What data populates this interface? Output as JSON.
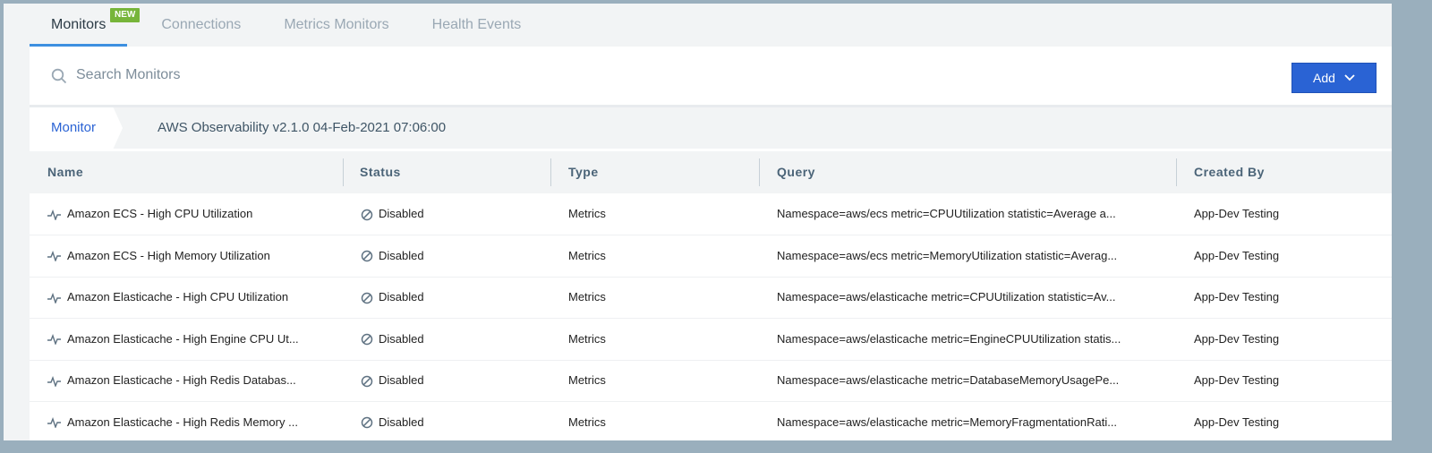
{
  "tabs": [
    {
      "label": "Monitors",
      "active": true,
      "badge": "NEW"
    },
    {
      "label": "Connections"
    },
    {
      "label": "Metrics Monitors"
    },
    {
      "label": "Health Events"
    }
  ],
  "search": {
    "placeholder": "Search Monitors",
    "icon": "search-icon"
  },
  "add_button": {
    "label": "Add",
    "icon": "chevron-down-icon",
    "color": "#2a63d4"
  },
  "breadcrumb": {
    "root": "Monitor",
    "current": "AWS Observability v2.1.0 04-Feb-2021 07:06:00"
  },
  "table": {
    "columns": [
      "Name",
      "Status",
      "Type",
      "Query",
      "Created By"
    ],
    "rows": [
      {
        "name": "Amazon ECS - High CPU Utilization",
        "status": "Disabled",
        "type": "Metrics",
        "query": "Namespace=aws/ecs metric=CPUUtilization statistic=Average a...",
        "created_by": "App-Dev Testing"
      },
      {
        "name": "Amazon ECS - High Memory Utilization",
        "status": "Disabled",
        "type": "Metrics",
        "query": "Namespace=aws/ecs metric=MemoryUtilization statistic=Averag...",
        "created_by": "App-Dev Testing"
      },
      {
        "name": "Amazon Elasticache - High CPU Utilization",
        "status": "Disabled",
        "type": "Metrics",
        "query": "Namespace=aws/elasticache metric=CPUUtilization statistic=Av...",
        "created_by": "App-Dev Testing"
      },
      {
        "name": "Amazon Elasticache - High Engine CPU Ut...",
        "status": "Disabled",
        "type": "Metrics",
        "query": "Namespace=aws/elasticache metric=EngineCPUUtilization statis...",
        "created_by": "App-Dev Testing"
      },
      {
        "name": "Amazon Elasticache - High Redis Databas...",
        "status": "Disabled",
        "type": "Metrics",
        "query": "Namespace=aws/elasticache metric=DatabaseMemoryUsagePe...",
        "created_by": "App-Dev Testing"
      },
      {
        "name": "Amazon Elasticache - High Redis Memory ...",
        "status": "Disabled",
        "type": "Metrics",
        "query": "Namespace=aws/elasticache metric=MemoryFragmentationRati...",
        "created_by": "App-Dev Testing"
      }
    ]
  }
}
